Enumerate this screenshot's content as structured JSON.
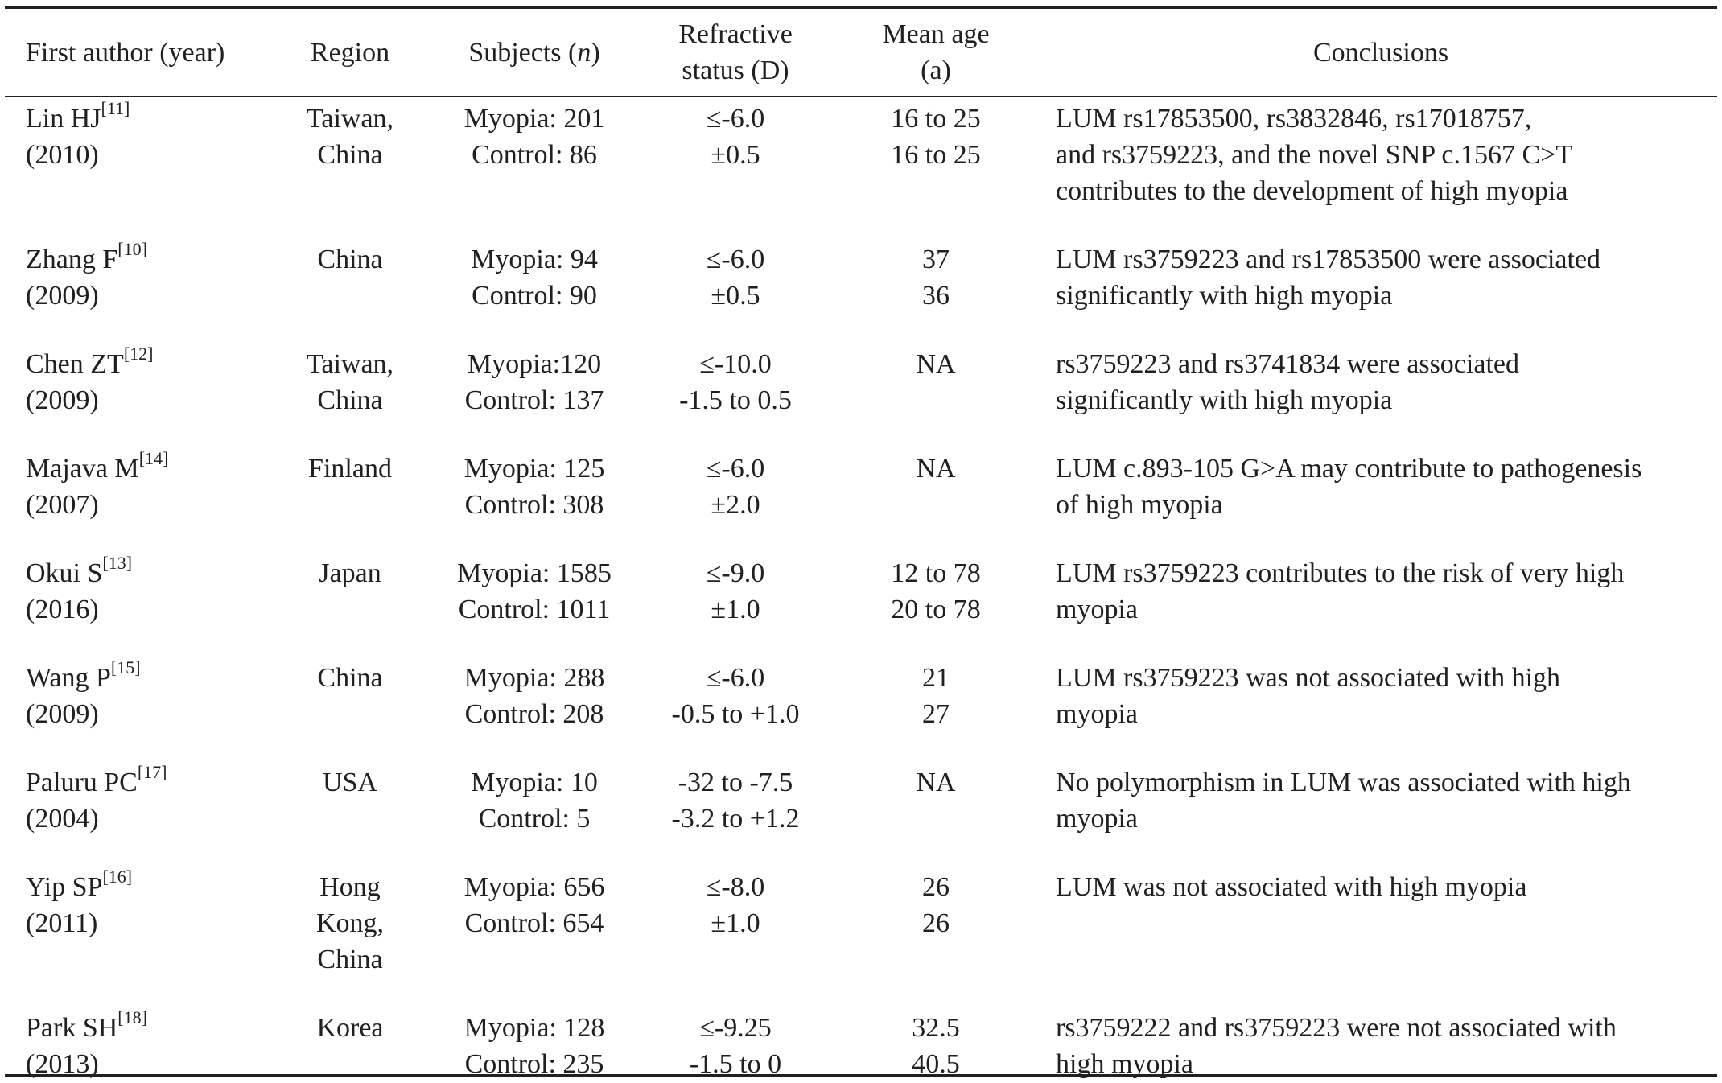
{
  "headers": {
    "author": "First author (year)",
    "region": "Region",
    "subjects_pre": "Subjects (",
    "subjects_n": "n",
    "subjects_post": ")",
    "refractive_1": "Refractive",
    "refractive_2": "status (D)",
    "age_1": "Mean age",
    "age_2": "(a)",
    "conclusions": "Conclusions"
  },
  "rows": [
    {
      "author": "Lin HJ",
      "ref": "[11]",
      "year": "(2010)",
      "region": [
        "Taiwan,",
        "China"
      ],
      "subjects": [
        "Myopia: 201",
        "Control: 86"
      ],
      "refractive": [
        "≤-6.0",
        "±0.5"
      ],
      "age": [
        "16 to 25",
        "16 to 25"
      ],
      "conclusion": [
        "LUM rs17853500, rs3832846, rs17018757,",
        "and rs3759223, and the novel SNP c.1567 C>T",
        "contributes to the development of high myopia"
      ]
    },
    {
      "author": "Zhang F",
      "ref": "[10]",
      "year": "(2009)",
      "region": [
        "China"
      ],
      "subjects": [
        "Myopia: 94",
        "Control: 90"
      ],
      "refractive": [
        "≤-6.0",
        "±0.5"
      ],
      "age": [
        "37",
        "36"
      ],
      "conclusion": [
        "LUM rs3759223 and rs17853500 were associated",
        "significantly with high myopia"
      ]
    },
    {
      "author": "Chen ZT",
      "ref": "[12]",
      "year": "(2009)",
      "region": [
        "Taiwan,",
        "China"
      ],
      "subjects": [
        "Myopia:120",
        "Control: 137"
      ],
      "refractive": [
        "≤-10.0",
        "-1.5 to 0.5"
      ],
      "age": [
        "NA"
      ],
      "conclusion": [
        "rs3759223 and rs3741834 were associated",
        "significantly with high myopia"
      ]
    },
    {
      "author": "Majava M",
      "ref": "[14]",
      "year": "(2007)",
      "region": [
        "Finland"
      ],
      "subjects": [
        "Myopia: 125",
        "Control: 308"
      ],
      "refractive": [
        "≤-6.0",
        "±2.0"
      ],
      "age": [
        "NA"
      ],
      "conclusion": [
        "LUM c.893-105 G>A may contribute to pathogenesis",
        "of high myopia"
      ]
    },
    {
      "author": "Okui S",
      "ref": "[13]",
      "year": "(2016)",
      "region": [
        "Japan"
      ],
      "subjects": [
        "Myopia: 1585",
        "Control: 1011"
      ],
      "refractive": [
        "≤-9.0",
        "±1.0"
      ],
      "age": [
        "12 to 78",
        "20 to 78"
      ],
      "conclusion": [
        "LUM rs3759223 contributes to the risk of very high",
        "myopia"
      ]
    },
    {
      "author": "Wang P",
      "ref": "[15]",
      "year": "(2009)",
      "region": [
        "China"
      ],
      "subjects": [
        "Myopia: 288",
        "Control: 208"
      ],
      "refractive": [
        "≤-6.0",
        "-0.5 to +1.0"
      ],
      "age": [
        "21",
        "27"
      ],
      "conclusion": [
        "LUM rs3759223 was not associated with high",
        "myopia"
      ]
    },
    {
      "author": "Paluru PC",
      "ref": "[17]",
      "year": "(2004)",
      "region": [
        "USA"
      ],
      "subjects": [
        "Myopia: 10",
        "Control: 5"
      ],
      "refractive": [
        "-32 to -7.5",
        "-3.2 to +1.2"
      ],
      "age": [
        "NA"
      ],
      "conclusion": [
        "No polymorphism in LUM was associated with high",
        "myopia"
      ]
    },
    {
      "author": "Yip SP",
      "ref": "[16]",
      "year": "(2011)",
      "region": [
        "Hong",
        "Kong,",
        "China"
      ],
      "subjects": [
        "Myopia: 656",
        "Control: 654"
      ],
      "refractive": [
        "≤-8.0",
        "±1.0"
      ],
      "age": [
        "26",
        "26"
      ],
      "conclusion": [
        "LUM was not associated with high myopia"
      ]
    },
    {
      "author": "Park SH",
      "ref": "[18]",
      "year": "(2013)",
      "region": [
        "Korea"
      ],
      "subjects": [
        "Myopia: 128",
        "Control: 235"
      ],
      "refractive": [
        "≤-9.25",
        "-1.5 to 0"
      ],
      "age": [
        "32.5",
        "40.5"
      ],
      "conclusion": [
        "rs3759222 and rs3759223 were not associated with",
        "high myopia"
      ]
    }
  ]
}
